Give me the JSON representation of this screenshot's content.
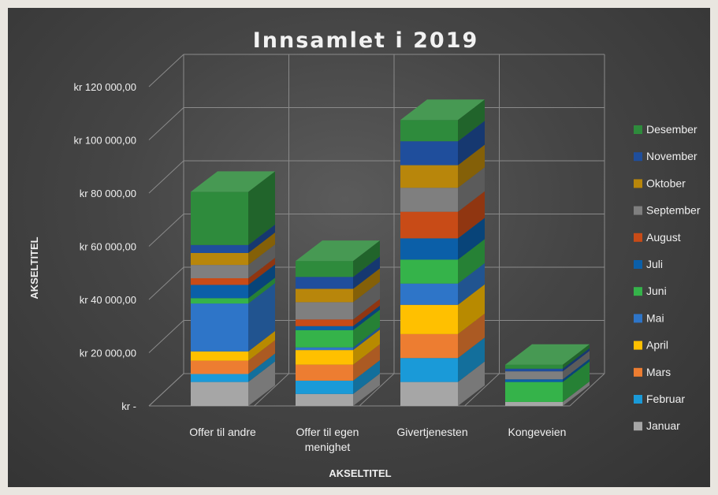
{
  "chart_data": {
    "type": "bar",
    "stacked": true,
    "three_d": true,
    "title": "Innsamlet i 2019",
    "xlabel": "AKSELTITEL",
    "ylabel": "AKSELTITEL",
    "ylim": [
      0,
      120000
    ],
    "yticks": [
      {
        "value": 0,
        "label": "kr -"
      },
      {
        "value": 20000,
        "label": "kr 20 000,00"
      },
      {
        "value": 40000,
        "label": "kr 40 000,00"
      },
      {
        "value": 60000,
        "label": "kr 60 000,00"
      },
      {
        "value": 80000,
        "label": "kr 80 000,00"
      },
      {
        "value": 100000,
        "label": "kr 100 000,00"
      },
      {
        "value": 120000,
        "label": "kr 120 000,00"
      }
    ],
    "categories": [
      {
        "lines": [
          "Offer til andre"
        ]
      },
      {
        "lines": [
          "Offer til egen",
          "menighet"
        ]
      },
      {
        "lines": [
          "Givertjenesten"
        ]
      },
      {
        "lines": [
          "Kongeveien"
        ]
      }
    ],
    "grid": true,
    "legend_position": "right",
    "series": [
      {
        "name": "Januar",
        "color": "#a6a6a6",
        "values": [
          9000,
          4500,
          9000,
          1500
        ]
      },
      {
        "name": "Februar",
        "color": "#1a9ad8",
        "values": [
          3000,
          5000,
          9000,
          0
        ]
      },
      {
        "name": "Mars",
        "color": "#ed7d31",
        "values": [
          5000,
          6000,
          9000,
          0
        ]
      },
      {
        "name": "April",
        "color": "#ffc000",
        "values": [
          3500,
          5500,
          11000,
          0
        ]
      },
      {
        "name": "Mai",
        "color": "#2e75c8",
        "values": [
          18000,
          1000,
          8000,
          0
        ]
      },
      {
        "name": "Juni",
        "color": "#35b34a",
        "values": [
          2000,
          6500,
          9000,
          7500
        ]
      },
      {
        "name": "Juli",
        "color": "#0b5fa8",
        "values": [
          5000,
          1500,
          8000,
          1000
        ]
      },
      {
        "name": "August",
        "color": "#c84b17",
        "values": [
          2500,
          2500,
          10000,
          0
        ]
      },
      {
        "name": "September",
        "color": "#7f7f7f",
        "values": [
          5000,
          6500,
          9000,
          3000
        ]
      },
      {
        "name": "Oktober",
        "color": "#b8860b",
        "values": [
          4500,
          5000,
          8500,
          0
        ]
      },
      {
        "name": "November",
        "color": "#1f4e9c",
        "values": [
          3000,
          4500,
          9000,
          1000
        ]
      },
      {
        "name": "Desember",
        "color": "#2e8b3c",
        "values": [
          20000,
          6000,
          8000,
          1500
        ]
      }
    ]
  }
}
